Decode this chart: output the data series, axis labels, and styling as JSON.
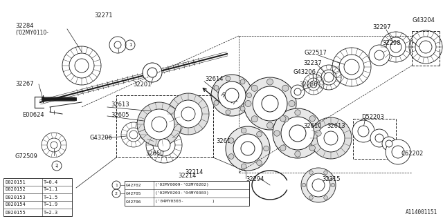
{
  "line_color": "#1a1a1a",
  "watermark": "A114001151",
  "table1_rows": [
    [
      "D020151",
      "T=0.4"
    ],
    [
      "D020152",
      "T=1.1"
    ],
    [
      "D020153",
      "T=1.5"
    ],
    [
      "D020154",
      "T=1.9"
    ],
    [
      "D020155",
      "T=2.3"
    ]
  ],
  "table2_rows": [
    [
      "G42702",
      "('02MY0009-'02MY0202)"
    ],
    [
      "G42705",
      "('02MY0203-'04MY0303)"
    ],
    [
      "G42706",
      "('04MY0303-           )"
    ]
  ]
}
